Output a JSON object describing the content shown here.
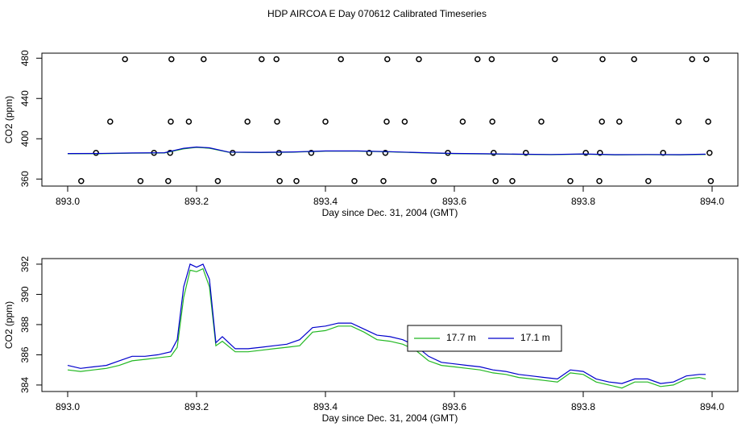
{
  "title": "HDP AIRCOA E  Day 070612  Calibrated Timeseries",
  "chart_data": [
    {
      "type": "line",
      "xlabel": "Day since Dec. 31, 2004 (GMT)",
      "ylabel": "CO2 (ppm)",
      "xlim": [
        892.96,
        894.04
      ],
      "ylim": [
        353,
        485
      ],
      "xticks": [
        {
          "value": 893,
          "label": "893.0"
        },
        893.2,
        893.4,
        893.6,
        893.8,
        {
          "value": 894,
          "label": "894.0"
        }
      ],
      "yticks": [
        360,
        400,
        440,
        480
      ],
      "series": [
        {
          "style": "points",
          "color": "#000000",
          "x": [
            893.089,
            893.161,
            893.211,
            893.301,
            893.324,
            893.424,
            893.496,
            893.545,
            893.636,
            893.658,
            893.756,
            893.83,
            893.879,
            893.969,
            893.991,
            893.066,
            893.16,
            893.188,
            893.279,
            893.325,
            893.4,
            893.495,
            893.523,
            893.613,
            893.659,
            893.735,
            893.829,
            893.856,
            893.948,
            893.994,
            893.044,
            893.134,
            893.159,
            893.256,
            893.328,
            893.378,
            893.468,
            893.493,
            893.59,
            893.661,
            893.711,
            893.804,
            893.826,
            893.924,
            893.996,
            893.021,
            893.113,
            893.156,
            893.233,
            893.329,
            893.355,
            893.445,
            893.49,
            893.568,
            893.664,
            893.69,
            893.78,
            893.825,
            893.901,
            893.998
          ],
          "values": [
            479,
            479,
            479,
            479,
            479,
            479,
            479,
            479,
            479,
            479,
            479,
            479,
            479,
            479,
            479,
            417,
            417,
            417,
            417,
            417,
            417,
            417,
            417,
            417,
            417,
            417,
            417,
            417,
            417,
            417,
            386,
            386,
            386,
            386,
            386,
            386,
            386,
            386,
            386,
            386,
            386,
            386,
            386,
            386,
            386,
            358,
            358,
            358,
            358,
            358,
            358,
            358,
            358,
            358,
            358,
            358,
            358,
            358,
            358,
            358
          ]
        },
        {
          "style": "lines",
          "color": "#22b822",
          "x": [
            893.0,
            893.05,
            893.1,
            893.15,
            893.18,
            893.2,
            893.22,
            893.25,
            893.3,
            893.35,
            893.4,
            893.45,
            893.5,
            893.55,
            893.6,
            893.65,
            893.7,
            893.75,
            893.8,
            893.85,
            893.9,
            893.95,
            893.99
          ],
          "values": [
            385.1,
            385.2,
            385.7,
            385.9,
            390.0,
            391.5,
            390.6,
            386.6,
            386.3,
            386.7,
            387.7,
            387.7,
            387.0,
            386.0,
            385.2,
            384.9,
            384.5,
            384.2,
            384.7,
            384.0,
            384.2,
            384.0,
            384.4
          ]
        },
        {
          "style": "lines",
          "color": "#0000cc",
          "x": [
            893.0,
            893.05,
            893.1,
            893.15,
            893.18,
            893.2,
            893.22,
            893.25,
            893.3,
            893.35,
            893.4,
            893.45,
            893.5,
            893.55,
            893.6,
            893.65,
            893.7,
            893.75,
            893.8,
            893.85,
            893.9,
            893.95,
            893.99
          ],
          "values": [
            385.3,
            385.4,
            385.9,
            386.1,
            390.5,
            391.8,
            391.0,
            386.8,
            386.5,
            386.9,
            387.9,
            387.9,
            387.2,
            386.2,
            385.4,
            385.1,
            384.7,
            384.4,
            384.9,
            384.2,
            384.4,
            384.2,
            384.7
          ]
        }
      ]
    },
    {
      "type": "line",
      "xlabel": "Day since Dec. 31, 2004 (GMT)",
      "ylabel": "CO2 (ppm)",
      "xlim": [
        892.96,
        894.04
      ],
      "ylim": [
        383.57,
        392.37
      ],
      "xticks": [
        {
          "value": 893,
          "label": "893.0"
        },
        893.2,
        893.4,
        893.6,
        893.8,
        {
          "value": 894,
          "label": "894.0"
        }
      ],
      "yticks": [
        384,
        386,
        388,
        390,
        392
      ],
      "legend": "center",
      "series": [
        {
          "name": "17.7 m",
          "style": "lines",
          "color": "#22b822",
          "x": [
            893.0,
            893.02,
            893.04,
            893.06,
            893.08,
            893.1,
            893.12,
            893.14,
            893.16,
            893.17,
            893.18,
            893.19,
            893.2,
            893.21,
            893.22,
            893.23,
            893.24,
            893.26,
            893.28,
            893.3,
            893.32,
            893.34,
            893.36,
            893.38,
            893.4,
            893.42,
            893.44,
            893.46,
            893.48,
            893.5,
            893.52,
            893.54,
            893.56,
            893.58,
            893.6,
            893.62,
            893.64,
            893.66,
            893.68,
            893.7,
            893.72,
            893.74,
            893.76,
            893.78,
            893.8,
            893.82,
            893.84,
            893.86,
            893.88,
            893.9,
            893.92,
            893.94,
            893.96,
            893.98,
            893.99
          ],
          "values": [
            385.0,
            384.9,
            385.0,
            385.1,
            385.3,
            385.6,
            385.7,
            385.8,
            385.9,
            386.5,
            389.8,
            391.6,
            391.5,
            391.7,
            390.5,
            386.6,
            386.9,
            386.2,
            386.2,
            386.3,
            386.4,
            386.5,
            386.6,
            387.5,
            387.6,
            387.9,
            387.9,
            387.5,
            387.0,
            386.9,
            386.7,
            386.3,
            385.6,
            385.3,
            385.2,
            385.1,
            385.0,
            384.8,
            384.7,
            384.5,
            384.4,
            384.3,
            384.2,
            384.8,
            384.7,
            384.2,
            384.0,
            383.8,
            384.2,
            384.2,
            383.9,
            384.0,
            384.4,
            384.5,
            384.4
          ]
        },
        {
          "name": "17.1 m",
          "style": "lines",
          "color": "#0000cc",
          "x": [
            893.0,
            893.02,
            893.04,
            893.06,
            893.08,
            893.1,
            893.12,
            893.14,
            893.16,
            893.17,
            893.18,
            893.19,
            893.2,
            893.21,
            893.22,
            893.23,
            893.24,
            893.26,
            893.28,
            893.3,
            893.32,
            893.34,
            893.36,
            893.38,
            893.4,
            893.42,
            893.44,
            893.46,
            893.48,
            893.5,
            893.52,
            893.54,
            893.56,
            893.58,
            893.6,
            893.62,
            893.64,
            893.66,
            893.68,
            893.7,
            893.72,
            893.74,
            893.76,
            893.78,
            893.8,
            893.82,
            893.84,
            893.86,
            893.88,
            893.9,
            893.92,
            893.94,
            893.96,
            893.98,
            893.99
          ],
          "values": [
            385.3,
            385.1,
            385.2,
            385.3,
            385.6,
            385.9,
            385.9,
            386.0,
            386.2,
            387.0,
            390.5,
            392.0,
            391.8,
            392.0,
            391.0,
            386.8,
            387.2,
            386.4,
            386.4,
            386.5,
            386.6,
            386.7,
            387.0,
            387.8,
            387.9,
            388.1,
            388.1,
            387.7,
            387.3,
            387.2,
            387.0,
            386.6,
            385.9,
            385.5,
            385.4,
            385.3,
            385.2,
            385.0,
            384.9,
            384.7,
            384.6,
            384.5,
            384.4,
            385.0,
            384.9,
            384.4,
            384.2,
            384.1,
            384.4,
            384.4,
            384.1,
            384.2,
            384.6,
            384.7,
            384.7
          ]
        }
      ]
    }
  ]
}
